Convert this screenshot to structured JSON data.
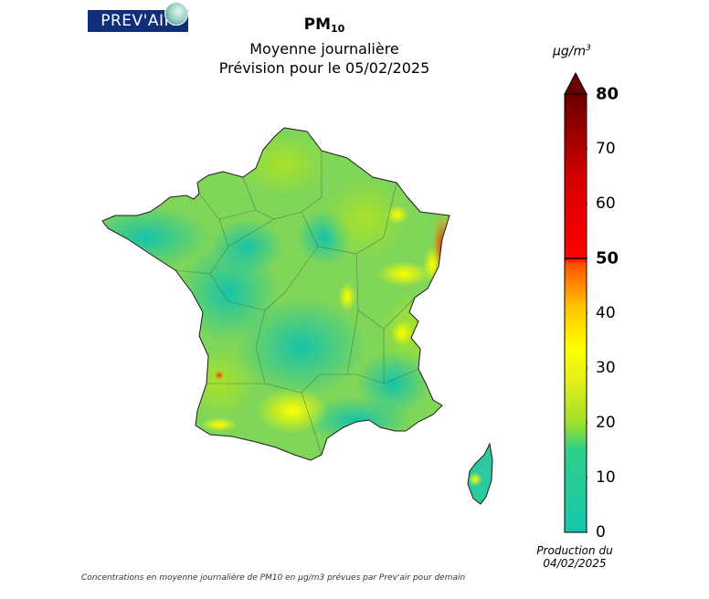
{
  "logo": {
    "text": "PREV'AIR"
  },
  "title": {
    "pollutant": "PM",
    "pollutant_sub": "10",
    "line2": "Moyenne journalière",
    "line3": "Prévision pour le 05/02/2025"
  },
  "legend": {
    "unit_base": "µg/m",
    "unit_exp": "3",
    "ticks": [
      "0",
      "10",
      "20",
      "30",
      "40",
      "50",
      "60",
      "70",
      "80"
    ],
    "tick_values": [
      0,
      10,
      20,
      30,
      40,
      50,
      60,
      70,
      80
    ],
    "bold_ticks": [
      "50",
      "80"
    ],
    "colors": {
      "0": "#17c7ad",
      "15": "#2fcf8a",
      "20": "#9ee02b",
      "28": "#e7ef1a",
      "33": "#ffff00",
      "42": "#ffae00",
      "49": "#ff5000",
      "50": "#ff0000",
      "65": "#d40000",
      "80": "#6a0000"
    }
  },
  "production": {
    "line1": "Production du",
    "line2": "04/02/2025"
  },
  "footnote": "Concentrations en moyenne journalière de PM10 en µg/m3 prévues par Prev'air pour demain",
  "map": {
    "region": "France",
    "hotspots": [
      {
        "name": "Alsace border",
        "value_range": [
          40,
          60
        ]
      },
      {
        "name": "Bordeaux area",
        "value_range": [
          45,
          55
        ]
      }
    ]
  }
}
